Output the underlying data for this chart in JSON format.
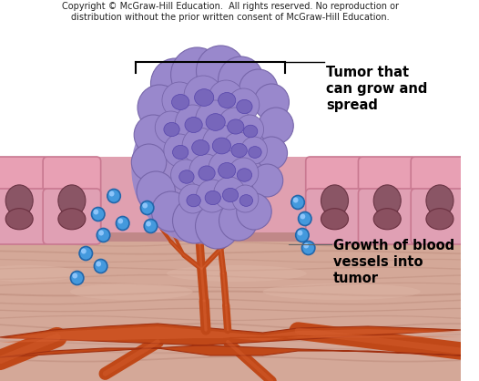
{
  "background_color": "#ffffff",
  "copyright_text": "Copyright © McGraw-Hill Education.  All rights reserved. No reproduction or\ndistribution without the prior written consent of McGraw-Hill Education.",
  "copyright_fontsize": 7.0,
  "label_tumor": "Tumor that\ncan grow and\nspread",
  "label_vessels": "Growth of blood\nvessels into\ntumor",
  "label_fontsize": 10.5,
  "cell_color": "#e8a0b4",
  "cell_border_color": "#c87890",
  "nucleus_color": "#8a5565",
  "nucleus_border": "#6a3545",
  "tumor_base_color": "#9988cc",
  "tumor_dark_color": "#7766aa",
  "tumor_cell_color": "#8877bb",
  "tumor_nucleus_color": "#6655aa",
  "vessel_color": "#c04818",
  "vessel_light_color": "#d86030",
  "vessel_dark_color": "#a03010",
  "connective_color": "#d4a090",
  "connective_stripe": "#c09078",
  "connective_light": "#e0b8a8",
  "blue_dot_color": "#4499dd",
  "blue_dot_edge": "#2266aa",
  "blue_dot_highlight": "#99ccff",
  "fig_width": 5.26,
  "fig_height": 4.18,
  "dpi": 100
}
